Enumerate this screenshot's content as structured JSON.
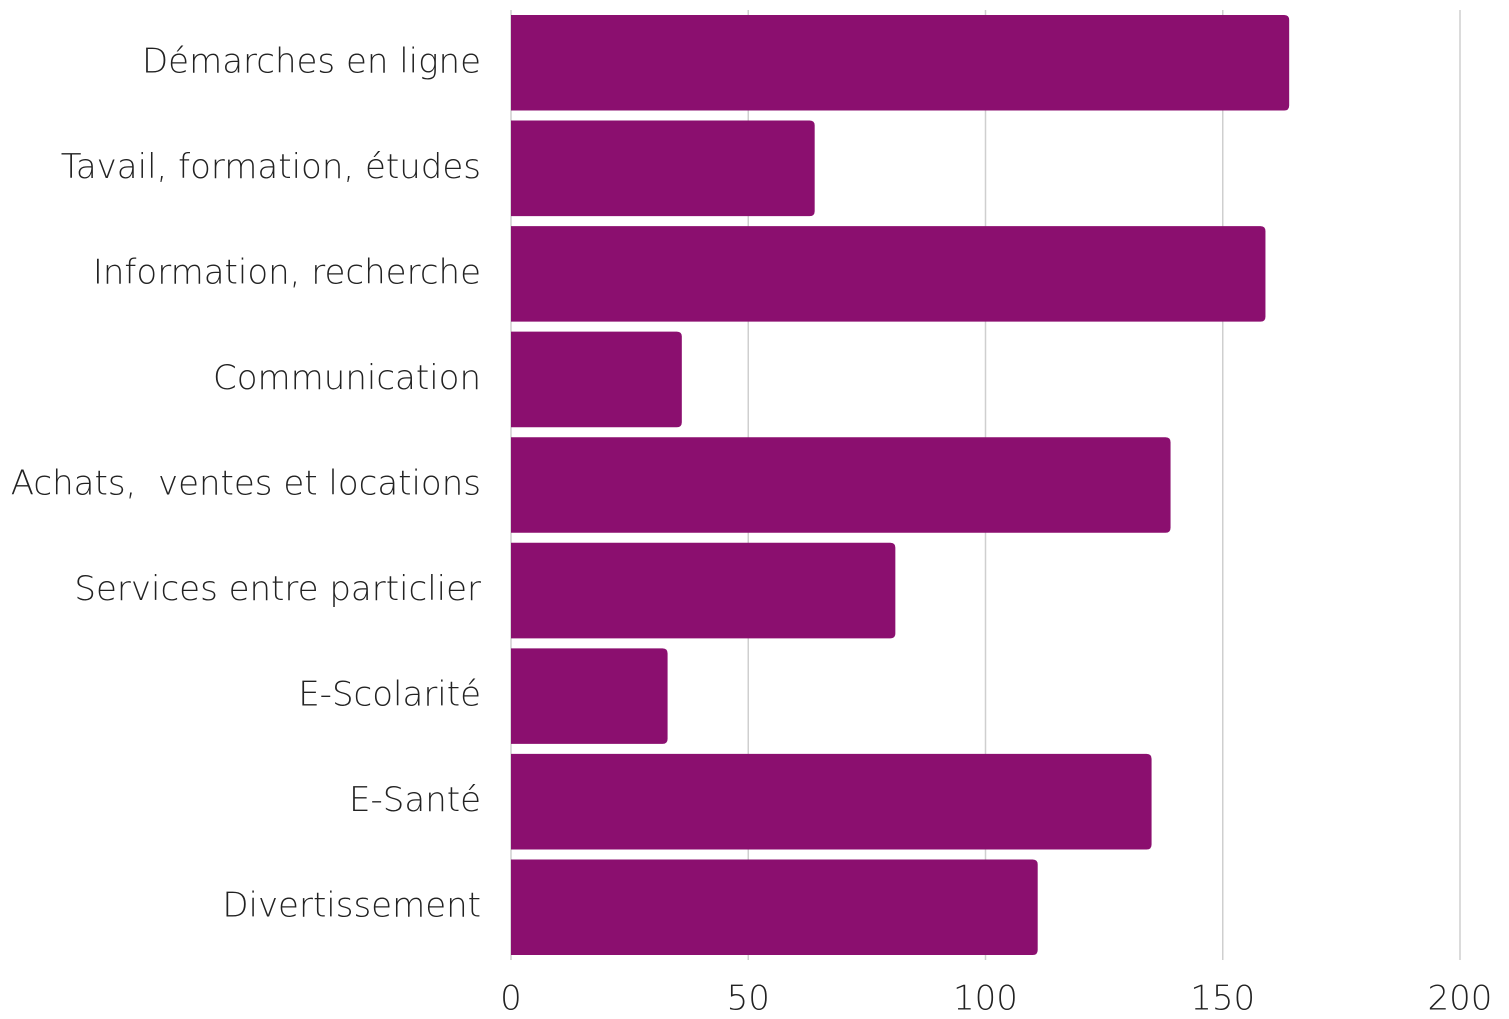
{
  "chart_data": {
    "type": "bar",
    "orientation": "horizontal",
    "categories": [
      "Démarches en ligne",
      "Tavail, formation, études",
      "Information, recherche",
      "Communication",
      "Achats,  ventes et locations",
      "Services entre particlier",
      "E-Scolarité",
      "E-Santé",
      "Divertissement"
    ],
    "values": [
      164,
      64,
      159,
      36,
      139,
      81,
      33,
      135,
      111
    ],
    "color": "#8b0f6f",
    "xlim": [
      0,
      200
    ],
    "xticks": [
      0,
      50,
      100,
      150,
      200
    ],
    "grid": true
  }
}
